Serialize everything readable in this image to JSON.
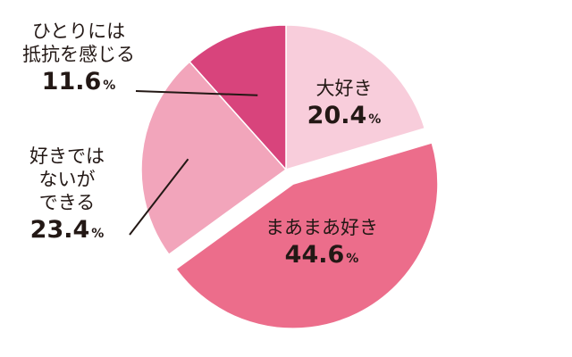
{
  "chart_data": {
    "type": "pie",
    "title": "",
    "slices": [
      {
        "label_lines": [
          "大好き"
        ],
        "value": 20.4,
        "display": "20.4",
        "unit": "%",
        "color": "#f8cddb"
      },
      {
        "label_lines": [
          "まあまあ好き"
        ],
        "value": 44.6,
        "display": "44.6",
        "unit": "%",
        "color": "#ec6d8b",
        "exploded": true
      },
      {
        "label_lines": [
          "好きでは",
          "ないが",
          "できる"
        ],
        "value": 23.4,
        "display": "23.4",
        "unit": "%",
        "color": "#f2a5bb"
      },
      {
        "label_lines": [
          "ひとりには",
          "抵抗を感じる"
        ],
        "value": 11.6,
        "display": "11.6",
        "unit": "%",
        "color": "#d8447c"
      }
    ]
  }
}
